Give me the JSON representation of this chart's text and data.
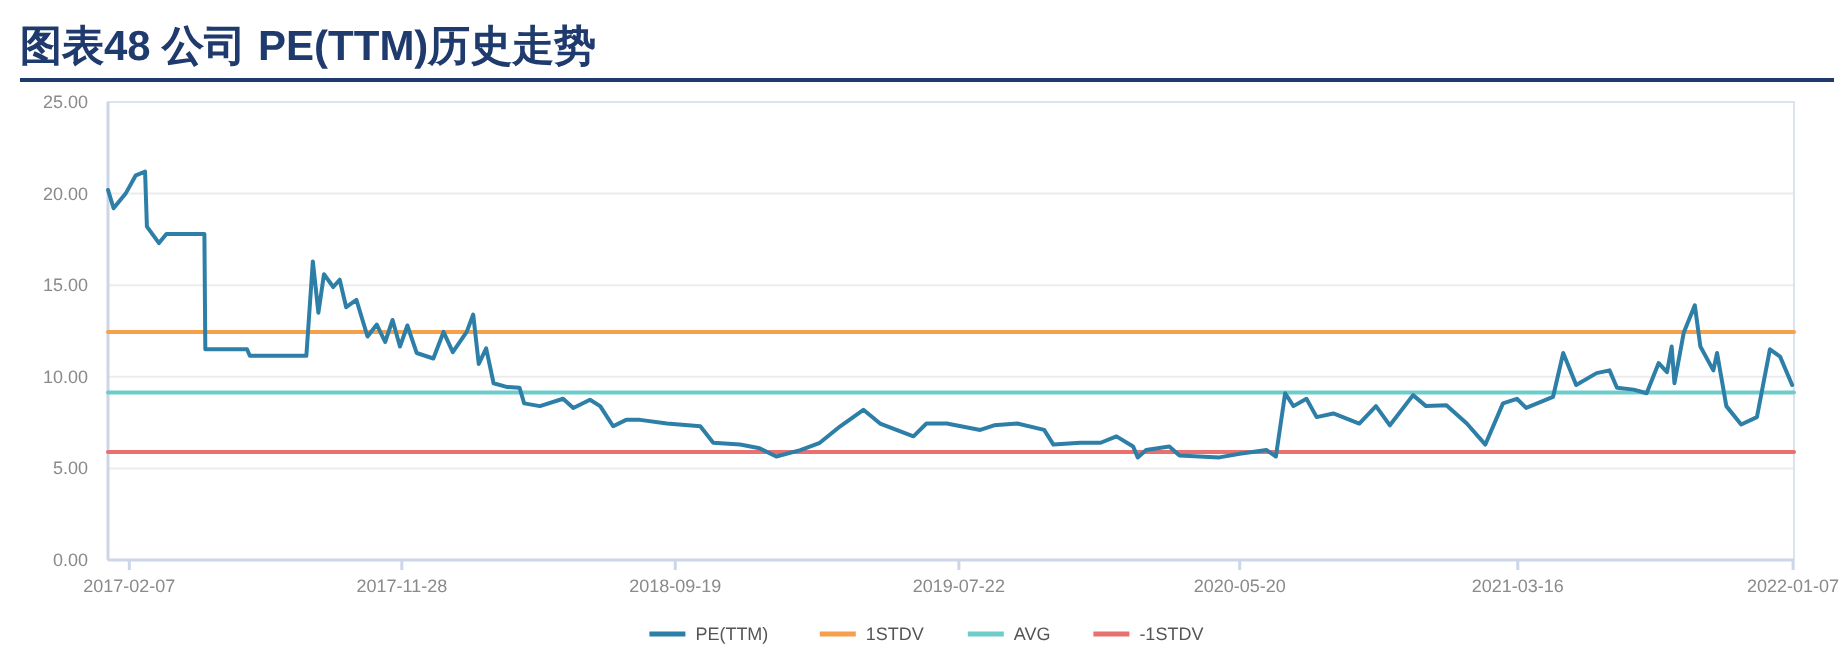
{
  "chart_data": {
    "type": "line",
    "title": "图表48  公司 PE(TTM)历史走势",
    "xlim": [
      "2017-01-15",
      "2022-01-08"
    ],
    "ylim": [
      0,
      25
    ],
    "xticks": [
      "2017-02-07",
      "2017-11-28",
      "2018-09-19",
      "2019-07-22",
      "2020-05-20",
      "2021-03-16",
      "2022-01-07"
    ],
    "yticks": [
      {
        "value": 0,
        "label": "0.00"
      },
      {
        "value": 5,
        "label": "5.00"
      },
      {
        "value": 10,
        "label": "10.00"
      },
      {
        "value": 15,
        "label": "15.00"
      },
      {
        "value": 20,
        "label": "20.00"
      },
      {
        "value": 25,
        "label": "25.00"
      }
    ],
    "grid": "y",
    "legend": "bottom",
    "series": [
      {
        "name": "PE(TTM)",
        "color": "#2e7fa8",
        "x": [
          "2017-01-15",
          "2017-01-21",
          "2017-02-03",
          "2017-02-14",
          "2017-02-24",
          "2017-02-26",
          "2017-03-11",
          "2017-03-19",
          "2017-04-29",
          "2017-04-30",
          "2017-06-14",
          "2017-06-17",
          "2017-08-17",
          "2017-08-24",
          "2017-08-30",
          "2017-09-05",
          "2017-09-15",
          "2017-09-22",
          "2017-09-29",
          "2017-10-10",
          "2017-10-22",
          "2017-11-01",
          "2017-11-10",
          "2017-11-18",
          "2017-11-26",
          "2017-12-04",
          "2017-12-14",
          "2018-01-01",
          "2018-01-12",
          "2018-01-22",
          "2018-02-06",
          "2018-02-13",
          "2018-02-19",
          "2018-02-27",
          "2018-03-07",
          "2018-03-21",
          "2018-04-04",
          "2018-04-09",
          "2018-04-26",
          "2018-05-21",
          "2018-06-01",
          "2018-06-19",
          "2018-06-30",
          "2018-07-14",
          "2018-07-28",
          "2018-08-12",
          "2018-09-10",
          "2018-10-16",
          "2018-10-30",
          "2018-11-28",
          "2018-12-19",
          "2019-01-06",
          "2019-02-01",
          "2019-02-22",
          "2019-03-16",
          "2019-04-10",
          "2019-04-28",
          "2019-06-03",
          "2019-06-17",
          "2019-07-09",
          "2019-08-14",
          "2019-08-29",
          "2019-09-23",
          "2019-10-22",
          "2019-11-01",
          "2019-11-30",
          "2019-12-22",
          "2020-01-08",
          "2020-01-26",
          "2020-01-31",
          "2020-02-09",
          "2020-03-05",
          "2020-03-16",
          "2020-04-28",
          "2020-05-20",
          "2020-06-18",
          "2020-06-28",
          "2020-07-08",
          "2020-07-17",
          "2020-07-31",
          "2020-08-11",
          "2020-08-29",
          "2020-09-26",
          "2020-10-14",
          "2020-10-29",
          "2020-11-23",
          "2020-12-07",
          "2020-12-29",
          "2021-01-20",
          "2021-02-09",
          "2021-02-28",
          "2021-03-15",
          "2021-03-25",
          "2021-04-23",
          "2021-05-04",
          "2021-05-18",
          "2021-06-09",
          "2021-06-23",
          "2021-07-01",
          "2021-07-19",
          "2021-08-02",
          "2021-08-15",
          "2021-08-24",
          "2021-08-29",
          "2021-09-01",
          "2021-09-11",
          "2021-09-23",
          "2021-09-29",
          "2021-10-13",
          "2021-10-17",
          "2021-10-27",
          "2021-11-12",
          "2021-11-29",
          "2021-12-13",
          "2021-12-24",
          "2022-01-06"
        ],
        "values": [
          20.2,
          19.2,
          20.0,
          21.0,
          21.2,
          18.2,
          17.3,
          17.8,
          17.8,
          11.5,
          11.5,
          11.15,
          11.15,
          16.3,
          13.5,
          15.6,
          14.9,
          15.3,
          13.8,
          14.2,
          12.2,
          12.85,
          11.9,
          13.1,
          11.65,
          12.8,
          11.3,
          11.0,
          12.45,
          11.35,
          12.45,
          13.4,
          10.7,
          11.55,
          9.65,
          9.45,
          9.4,
          8.55,
          8.4,
          8.8,
          8.3,
          8.75,
          8.4,
          7.3,
          7.65,
          7.65,
          7.45,
          7.3,
          6.4,
          6.3,
          6.1,
          5.65,
          6.0,
          6.4,
          7.3,
          8.2,
          7.45,
          6.75,
          7.45,
          7.45,
          7.1,
          7.35,
          7.45,
          7.1,
          6.3,
          6.4,
          6.4,
          6.75,
          6.2,
          5.6,
          6.0,
          6.2,
          5.7,
          5.6,
          5.8,
          6.0,
          5.65,
          9.1,
          8.4,
          8.8,
          7.8,
          8.0,
          7.45,
          8.4,
          7.35,
          9.0,
          8.4,
          8.45,
          7.45,
          6.3,
          8.55,
          8.8,
          8.3,
          8.9,
          11.3,
          9.55,
          10.2,
          10.35,
          9.4,
          9.3,
          9.1,
          10.75,
          10.25,
          11.65,
          9.65,
          12.4,
          13.9,
          11.65,
          10.35,
          11.3,
          8.4,
          7.4,
          7.8,
          11.5,
          11.1,
          9.55
        ]
      },
      {
        "name": "1STDV",
        "color": "#f7a04b",
        "x": [
          "2017-01-15",
          "2022-01-08"
        ],
        "values": [
          12.45,
          12.45
        ]
      },
      {
        "name": "AVG",
        "color": "#6dcdcb",
        "x": [
          "2017-01-15",
          "2022-01-08"
        ],
        "values": [
          9.15,
          9.15
        ]
      },
      {
        "name": "-1STDV",
        "color": "#e8706e",
        "x": [
          "2017-01-15",
          "2022-01-08"
        ],
        "values": [
          5.9,
          5.9
        ]
      }
    ]
  }
}
